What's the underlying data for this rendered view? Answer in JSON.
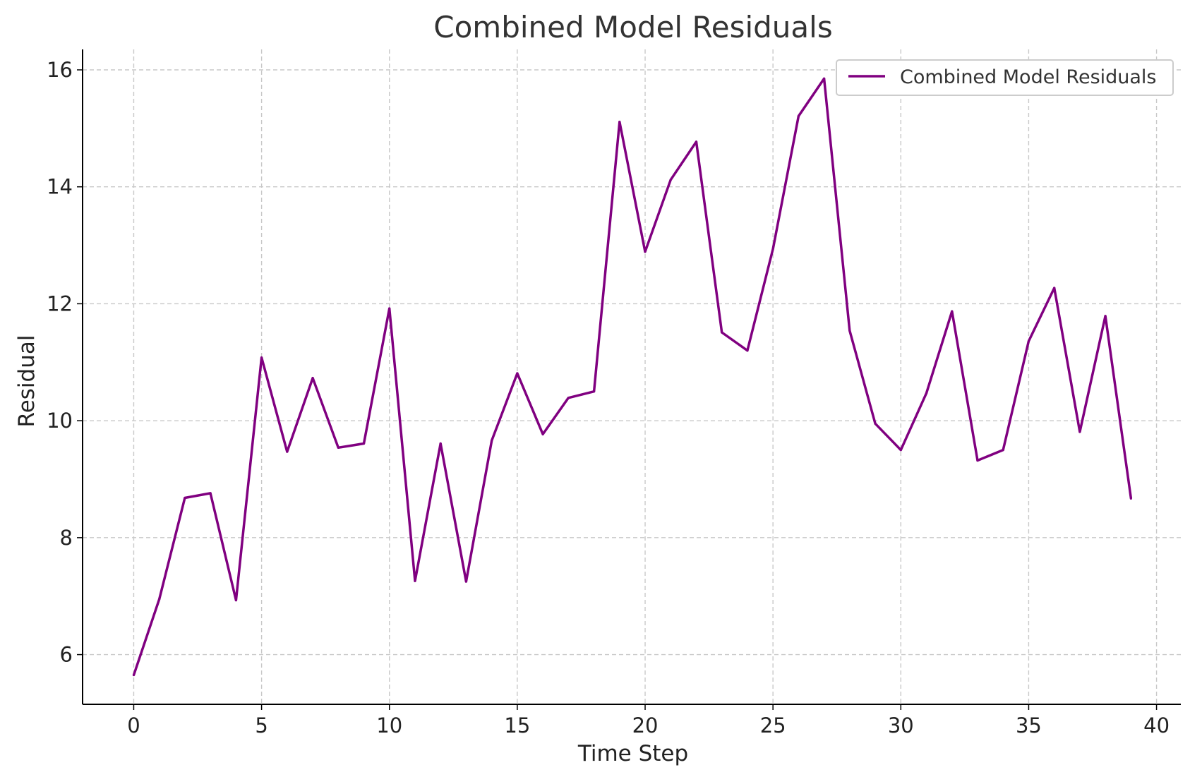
{
  "chart_data": {
    "type": "line",
    "title": "Combined Model Residuals",
    "xlabel": "Time Step",
    "ylabel": "Residual",
    "xlim": [
      -2,
      40.95
    ],
    "ylim": [
      5.15,
      16.35
    ],
    "xticks": [
      0,
      5,
      10,
      15,
      20,
      25,
      30,
      35,
      40
    ],
    "yticks": [
      6,
      8,
      10,
      12,
      14,
      16
    ],
    "grid": true,
    "legend_position": "top-right",
    "series": [
      {
        "name": "Combined Model Residuals",
        "color": "#800080",
        "x": [
          0,
          1,
          2,
          3,
          4,
          5,
          6,
          7,
          8,
          9,
          10,
          11,
          12,
          13,
          14,
          15,
          16,
          17,
          18,
          19,
          20,
          21,
          22,
          23,
          24,
          25,
          26,
          27,
          28,
          29,
          30,
          31,
          32,
          33,
          34,
          35,
          36,
          37,
          38,
          39
        ],
        "values": [
          5.65,
          6.95,
          8.68,
          8.76,
          6.93,
          11.08,
          9.47,
          10.73,
          9.54,
          9.61,
          11.92,
          7.26,
          9.61,
          7.25,
          9.66,
          10.81,
          9.77,
          10.39,
          10.5,
          15.11,
          12.89,
          14.12,
          14.77,
          11.51,
          11.2,
          12.94,
          15.21,
          15.85,
          11.54,
          9.95,
          9.5,
          10.47,
          11.87,
          9.32,
          9.5,
          11.36,
          12.27,
          9.81,
          11.79,
          8.67
        ]
      }
    ]
  }
}
